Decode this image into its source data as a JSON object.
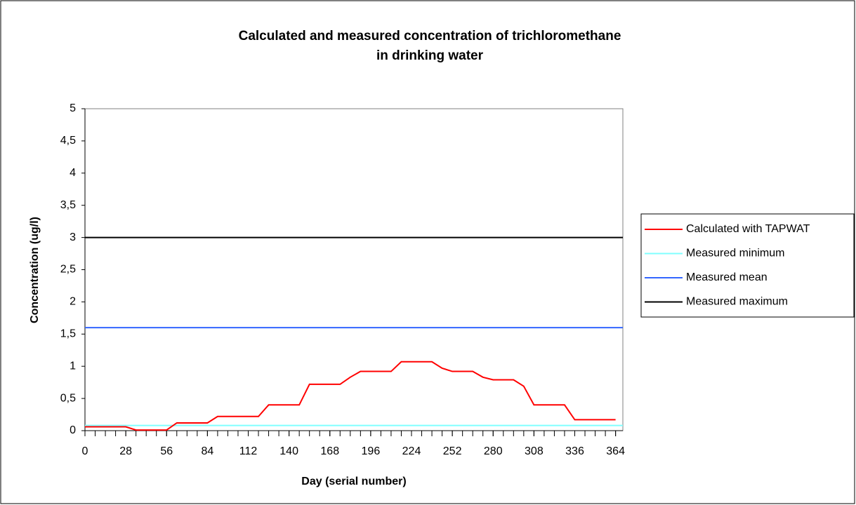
{
  "chart_data": {
    "type": "line",
    "title": [
      "Calculated and measured concentration of trichloromethane",
      "in drinking water"
    ],
    "x_label": "Day (serial number)",
    "y_label": "Concentration (ug/l)",
    "xlim": [
      0,
      369
    ],
    "xticks": [
      0,
      28,
      56,
      84,
      112,
      140,
      168,
      196,
      224,
      252,
      280,
      308,
      336,
      364
    ],
    "ylim": [
      0,
      5
    ],
    "yticks": [
      0,
      {
        "value": 0.5,
        "label": "0,5"
      },
      1,
      {
        "value": 1.5,
        "label": "1,5"
      },
      2,
      {
        "value": 2.5,
        "label": "2,5"
      },
      3,
      {
        "value": 3.5,
        "label": "3,5"
      },
      4,
      {
        "value": 4.5,
        "label": "4,5"
      },
      5
    ],
    "legend": "right",
    "series": [
      {
        "name": "Calculated with TAPWAT",
        "color": "#ff0000",
        "x": [
          0,
          7,
          14,
          21,
          28,
          35,
          42,
          49,
          56,
          63,
          70,
          77,
          84,
          91,
          98,
          105,
          112,
          119,
          126,
          133,
          140,
          147,
          154,
          161,
          168,
          175,
          182,
          189,
          196,
          203,
          210,
          217,
          224,
          231,
          238,
          245,
          252,
          259,
          266,
          273,
          280,
          287,
          294,
          301,
          308,
          315,
          322,
          329,
          336,
          343,
          350,
          357,
          364
        ],
        "values": [
          0.06,
          0.06,
          0.06,
          0.06,
          0.06,
          0.01,
          0.01,
          0.01,
          0.01,
          0.12,
          0.12,
          0.12,
          0.12,
          0.22,
          0.22,
          0.22,
          0.22,
          0.22,
          0.4,
          0.4,
          0.4,
          0.4,
          0.72,
          0.72,
          0.72,
          0.72,
          0.83,
          0.92,
          0.92,
          0.92,
          0.92,
          1.07,
          1.07,
          1.07,
          1.07,
          0.97,
          0.92,
          0.92,
          0.92,
          0.83,
          0.79,
          0.79,
          0.79,
          0.69,
          0.4,
          0.4,
          0.4,
          0.4,
          0.17,
          0.17,
          0.17,
          0.17,
          0.17
        ]
      },
      {
        "name": "Measured minimum",
        "color": "#80ffff",
        "x": [
          0,
          369
        ],
        "values": [
          0.08,
          0.08
        ]
      },
      {
        "name": "Measured mean",
        "color": "#3366ff",
        "x": [
          0,
          369
        ],
        "values": [
          1.6,
          1.6
        ]
      },
      {
        "name": "Measured maximum",
        "color": "#000000",
        "x": [
          0,
          369
        ],
        "values": [
          3,
          3
        ]
      }
    ]
  }
}
